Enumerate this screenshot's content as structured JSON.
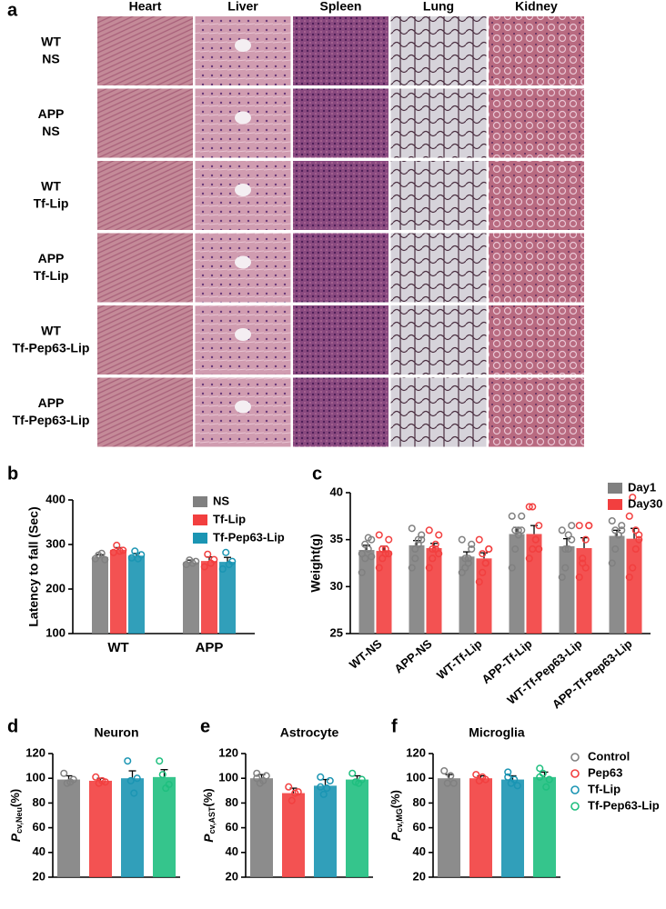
{
  "histology": {
    "panel": "a",
    "columns": [
      "Heart",
      "Liver",
      "Spleen",
      "Lung",
      "Kidney"
    ],
    "rows": [
      [
        "WT",
        "NS"
      ],
      [
        "APP",
        "NS"
      ],
      [
        "WT",
        "Tf-Lip"
      ],
      [
        "APP",
        "Tf-Lip"
      ],
      [
        "WT",
        "Tf-Pep63-Lip"
      ],
      [
        "APP",
        "Tf-Pep63-Lip"
      ]
    ]
  },
  "shared_legend": {
    "names": [
      "Control",
      "Pep63",
      "Tf-Lip",
      "Tf-Pep63-Lip"
    ],
    "colors": [
      "#808080",
      "#f23f3f",
      "#1b95b3",
      "#1fbf7f"
    ]
  },
  "chart_data": [
    {
      "type": "bar",
      "panel": "b",
      "ylabel": "Latency to fall (Sec)",
      "categories": [
        "WT",
        "APP"
      ],
      "ylim": [
        100,
        400
      ],
      "yticks": [
        100,
        200,
        300,
        400
      ],
      "series": [
        {
          "name": "NS",
          "color": "#808080",
          "values": [
            272,
            260
          ],
          "errors": [
            5,
            5
          ],
          "points": [
            [
              268,
              276,
              280,
              266
            ],
            [
              255,
              265,
              258,
              262
            ]
          ]
        },
        {
          "name": "Tf-Lip",
          "color": "#f23f3f",
          "values": [
            288,
            263
          ],
          "errors": [
            5,
            9
          ],
          "points": [
            [
              282,
              298,
              285,
              287
            ],
            [
              250,
              278,
              258,
              266
            ]
          ]
        },
        {
          "name": "Tf-Pep63-Lip",
          "color": "#1b95b3",
          "values": [
            275,
            261
          ],
          "errors": [
            5,
            10
          ],
          "points": [
            [
              270,
              285,
              268,
              277
            ],
            [
              245,
              282,
              255,
              262
            ]
          ]
        }
      ]
    },
    {
      "type": "bar",
      "panel": "c",
      "ylabel": "Weight(g)",
      "categories": [
        "WT-NS",
        "APP-NS",
        "WT-Tf-Lip",
        "APP-Tf-Lip",
        "WT-Tf-Pep63-Lip",
        "APP-Tf-Pep63-Lip"
      ],
      "ylim": [
        25,
        40
      ],
      "yticks": [
        25,
        30,
        35,
        40
      ],
      "series": [
        {
          "name": "Day1",
          "color": "#808080",
          "values": [
            33.9,
            34.4,
            33.2,
            35.6,
            34.3,
            35.4
          ],
          "errors": [
            0.5,
            0.5,
            0.5,
            0.7,
            0.8,
            0.6
          ],
          "points": [
            [
              31.5,
              33,
              34,
              35,
              33.5,
              34.5,
              35.2,
              33.2
            ],
            [
              32,
              33,
              34.5,
              35.5,
              36.2,
              34,
              35,
              35
            ],
            [
              31.5,
              32,
              33,
              34.5,
              35,
              33,
              32.5,
              34
            ],
            [
              32,
              34,
              35.5,
              36,
              37.5,
              36,
              36,
              37.5
            ],
            [
              31,
              32,
              34,
              35,
              36,
              34,
              35.5,
              36.5
            ],
            [
              32.5,
              34,
              35.5,
              36.5,
              37,
              36,
              35.5,
              36
            ]
          ]
        },
        {
          "name": "Day30",
          "color": "#f23f3f",
          "values": [
            33.8,
            34.1,
            33.0,
            35.6,
            34.1,
            35.1
          ],
          "errors": [
            0.5,
            0.5,
            0.6,
            0.9,
            1.1,
            1.1
          ],
          "points": [
            [
              32,
              33,
              34,
              35,
              35.5,
              34,
              33.5,
              33.5
            ],
            [
              32,
              33,
              34.5,
              35.5,
              36,
              34,
              34,
              33.5
            ],
            [
              30.5,
              31.5,
              32.5,
              34,
              35,
              33.5,
              32.5,
              34
            ],
            [
              33,
              34,
              35,
              36.5,
              38.5,
              38.5,
              35,
              34
            ],
            [
              31,
              32.5,
              35,
              36.5,
              36.5,
              33,
              32,
              36.5
            ],
            [
              31,
              32,
              34,
              35.5,
              37.5,
              39.5,
              36,
              35
            ]
          ]
        }
      ]
    },
    {
      "type": "bar",
      "panel": "d",
      "title": "Neuron",
      "ylabel": [
        "P",
        "cv,Neu",
        "(%)"
      ],
      "ylim": [
        20,
        120
      ],
      "yticks": [
        20,
        40,
        60,
        80,
        100,
        120
      ],
      "values": [
        99,
        98,
        100,
        101
      ],
      "errors": [
        3,
        2,
        6,
        6
      ],
      "points": [
        [
          104,
          96,
          97,
          99
        ],
        [
          101,
          96,
          98,
          97
        ],
        [
          114,
          98,
          88,
          100
        ],
        [
          114,
          103,
          92,
          95
        ]
      ]
    },
    {
      "type": "bar",
      "panel": "e",
      "title": "Astrocyte",
      "ylabel": [
        "P",
        "cv,AST",
        "(%)"
      ],
      "ylim": [
        20,
        120
      ],
      "yticks": [
        20,
        40,
        60,
        80,
        100,
        120
      ],
      "values": [
        100,
        88,
        94,
        99
      ],
      "errors": [
        3,
        4,
        5,
        3
      ],
      "points": [
        [
          104,
          96,
          98,
          102,
          100
        ],
        [
          93,
          82,
          88,
          89
        ],
        [
          101,
          87,
          92,
          98,
          93
        ],
        [
          104,
          97,
          96,
          99
        ]
      ]
    },
    {
      "type": "bar",
      "panel": "f",
      "title": "Microglia",
      "ylabel": [
        "P",
        "cv,MG",
        "(%)"
      ],
      "ylim": [
        20,
        120
      ],
      "yticks": [
        20,
        40,
        60,
        80,
        100,
        120
      ],
      "values": [
        100,
        100,
        99,
        101
      ],
      "errors": [
        3,
        2,
        3,
        4
      ],
      "points": [
        [
          106,
          96,
          102,
          96
        ],
        [
          103,
          98,
          101,
          99
        ],
        [
          105,
          96,
          99,
          94,
          101
        ],
        [
          108,
          104,
          93,
          99,
          101
        ]
      ]
    }
  ]
}
